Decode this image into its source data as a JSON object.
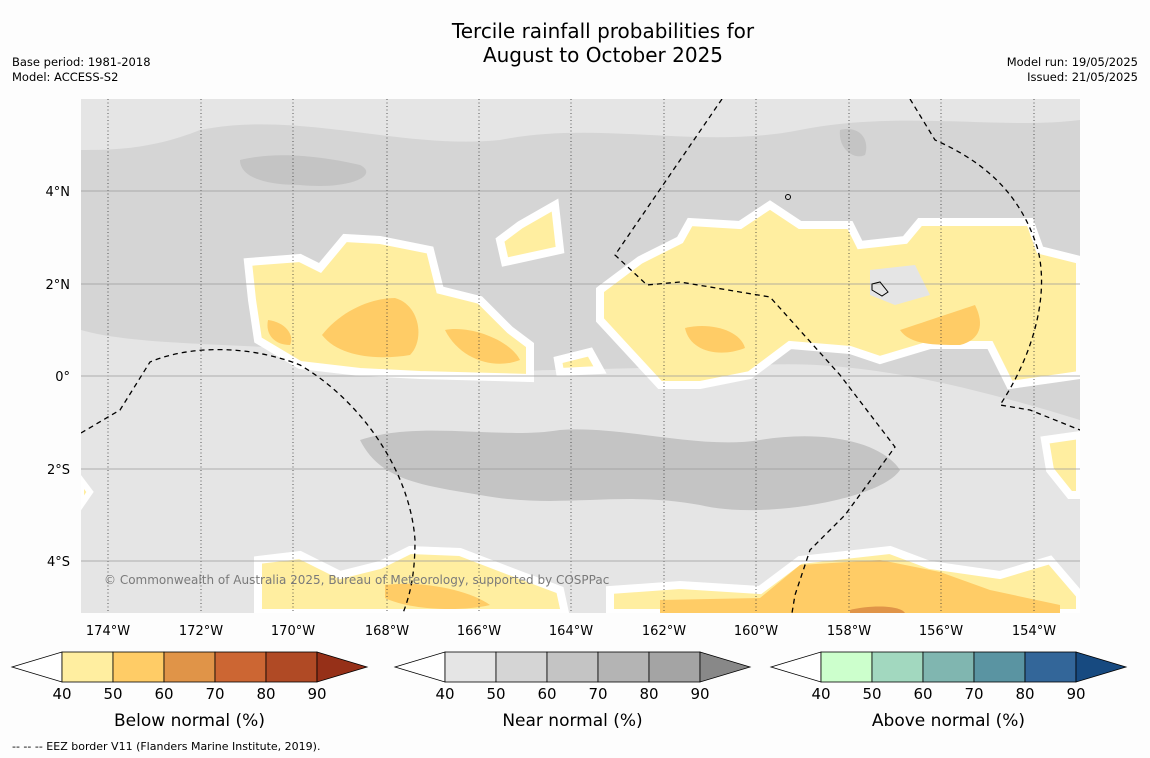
{
  "title_line1": "Tercile rainfall probabilities for",
  "title_line2": "August to October 2025",
  "meta": {
    "base_period": "Base period: 1981-2018",
    "model": "Model: ACCESS-S2",
    "model_run": "Model run: 19/05/2025",
    "issued": "Issued: 21/05/2025"
  },
  "axes": {
    "lon_labels": [
      "174°W",
      "172°W",
      "170°W",
      "168°W",
      "166°W",
      "164°W",
      "162°W",
      "160°W",
      "158°W",
      "156°W",
      "154°W"
    ],
    "lat_labels": [
      "4°N",
      "2°N",
      "0°",
      "2°S",
      "4°S"
    ]
  },
  "copyright": "© Commonwealth of Australia 2025, Bureau of Meteorology, supported by COSPPac",
  "colorbars": [
    {
      "label": "Below normal (%)",
      "ticks": [
        "40",
        "50",
        "60",
        "70",
        "80",
        "90"
      ],
      "colors": [
        "#ffeea0",
        "#ffcc66",
        "#e09448",
        "#cc6633",
        "#b04a25",
        "#963018"
      ]
    },
    {
      "label": "Near normal (%)",
      "ticks": [
        "40",
        "50",
        "60",
        "70",
        "80",
        "90"
      ],
      "colors": [
        "#e5e5e5",
        "#d5d5d5",
        "#c4c4c4",
        "#b4b4b4",
        "#a4a4a4",
        "#888888"
      ]
    },
    {
      "label": "Above normal (%)",
      "ticks": [
        "40",
        "50",
        "60",
        "70",
        "80",
        "90"
      ],
      "colors": [
        "#ccffcc",
        "#a2d8bf",
        "#80b6b0",
        "#5a94a2",
        "#336699",
        "#174a80"
      ]
    }
  ],
  "legend_colors": {
    "below": "#ffeea0",
    "below_60": "#ffcc66",
    "below_70": "#e09448",
    "near_40": "#e5e5e5",
    "near_50": "#d5d5d5",
    "near_60": "#c4c4c4"
  },
  "footnote": "--  --  -- EEZ border V11 (Flanders Marine Institute, 2019)."
}
